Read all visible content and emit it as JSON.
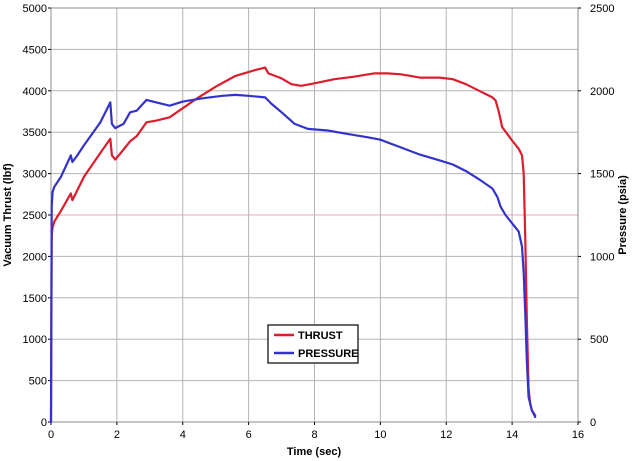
{
  "chart_data": {
    "type": "line",
    "title": "",
    "xlabel": "Time (sec)",
    "ylabel": "Vacuum Thrust (lbf)",
    "y2label": "Pressure (psia)",
    "xlim": [
      0,
      16
    ],
    "ylim": [
      0,
      5000
    ],
    "y2lim": [
      0,
      2500
    ],
    "x_ticks": [
      0,
      2,
      4,
      6,
      8,
      10,
      12,
      14,
      16
    ],
    "y_ticks": [
      0,
      500,
      1000,
      1500,
      2000,
      2500,
      3000,
      3500,
      4000,
      4500,
      5000
    ],
    "y2_ticks": [
      0,
      500,
      1000,
      1500,
      2000,
      2500
    ],
    "grid": true,
    "legend_position": "center-bottom",
    "series": [
      {
        "name": "THRUST",
        "axis": "left",
        "color": "#dd1c2e",
        "x": [
          0,
          0.02,
          0.05,
          0.1,
          0.3,
          0.6,
          0.65,
          0.8,
          1.0,
          1.5,
          1.8,
          1.85,
          1.95,
          2.1,
          2.4,
          2.6,
          2.9,
          3.2,
          3.6,
          4.0,
          4.4,
          5.0,
          5.6,
          6.2,
          6.5,
          6.6,
          7.0,
          7.3,
          7.6,
          8.0,
          8.6,
          9.2,
          9.8,
          10.2,
          10.6,
          11.2,
          11.8,
          12.2,
          12.6,
          13.0,
          13.4,
          13.5,
          13.6,
          13.7,
          14.0,
          14.2,
          14.3,
          14.35,
          14.4,
          14.45,
          14.5,
          14.55,
          14.6,
          14.7
        ],
        "y": [
          0,
          2250,
          2350,
          2420,
          2550,
          2760,
          2680,
          2800,
          2960,
          3250,
          3420,
          3220,
          3170,
          3240,
          3390,
          3450,
          3620,
          3640,
          3680,
          3790,
          3900,
          4050,
          4180,
          4250,
          4280,
          4210,
          4150,
          4080,
          4060,
          4090,
          4140,
          4170,
          4210,
          4210,
          4200,
          4160,
          4160,
          4140,
          4080,
          4000,
          3920,
          3880,
          3740,
          3560,
          3400,
          3300,
          3220,
          3000,
          2200,
          1200,
          400,
          220,
          140,
          80
        ]
      },
      {
        "name": "PRESSURE",
        "axis": "right",
        "color": "#3333cc",
        "x": [
          0,
          0.02,
          0.05,
          0.1,
          0.3,
          0.6,
          0.65,
          0.8,
          1.0,
          1.5,
          1.8,
          1.85,
          1.95,
          2.2,
          2.4,
          2.6,
          2.9,
          3.2,
          3.6,
          4.0,
          4.6,
          5.2,
          5.6,
          6.0,
          6.5,
          6.7,
          7.0,
          7.4,
          7.8,
          8.4,
          9.0,
          9.6,
          10.0,
          10.6,
          11.2,
          11.8,
          12.2,
          12.6,
          13.0,
          13.4,
          13.55,
          13.65,
          13.8,
          14.0,
          14.2,
          14.3,
          14.35,
          14.4,
          14.45,
          14.5,
          14.6,
          14.7
        ],
        "y": [
          0,
          1300,
          1390,
          1420,
          1480,
          1610,
          1570,
          1610,
          1670,
          1810,
          1930,
          1800,
          1775,
          1800,
          1870,
          1880,
          1945,
          1930,
          1910,
          1935,
          1955,
          1970,
          1975,
          1970,
          1960,
          1920,
          1870,
          1800,
          1770,
          1760,
          1740,
          1720,
          1705,
          1660,
          1615,
          1580,
          1555,
          1515,
          1465,
          1410,
          1360,
          1300,
          1250,
          1200,
          1150,
          1060,
          900,
          650,
          360,
          150,
          70,
          30
        ]
      }
    ],
    "legend": [
      {
        "label": "THRUST",
        "color": "#dd1c2e"
      },
      {
        "label": "PRESSURE",
        "color": "#3333cc"
      }
    ]
  }
}
